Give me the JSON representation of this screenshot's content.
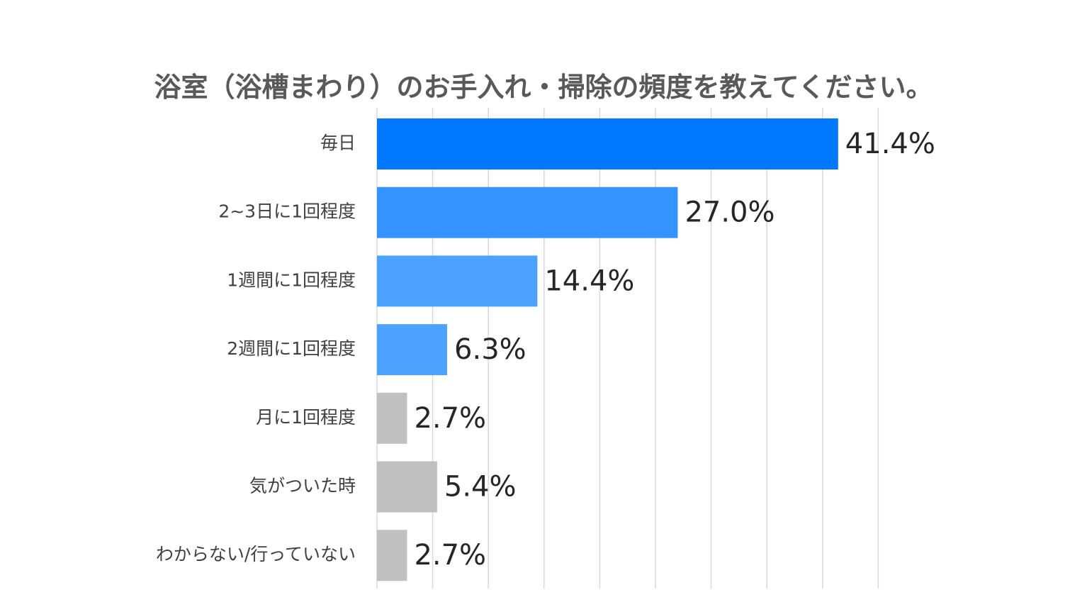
{
  "chart_data": {
    "type": "bar",
    "orientation": "horizontal",
    "title": "浴室（浴槽まわり）のお手入れ・掃除の頻度を教えてください。",
    "categories": [
      "毎日",
      "2~3日に1回程度",
      "1週間に1回程度",
      "2週間に1回程度",
      "月に1回程度",
      "気がついた時",
      "わからない/行っていない"
    ],
    "values": [
      41.4,
      27.0,
      14.4,
      6.3,
      2.7,
      5.4,
      2.7
    ],
    "value_labels": [
      "41.4%",
      "27.0%",
      "14.4%",
      "6.3%",
      "2.7%",
      "5.4%",
      "2.7%"
    ],
    "unit": "%",
    "xlim": [
      0,
      45
    ],
    "grid": true,
    "legend": "none",
    "bar_colors": [
      "#0078FF",
      "#3593FF",
      "#4DA1FF",
      "#4DA1FF",
      "#C0C0C0",
      "#C0C0C0",
      "#C0C0C0"
    ],
    "gridline_color": "#D9D9D9"
  }
}
